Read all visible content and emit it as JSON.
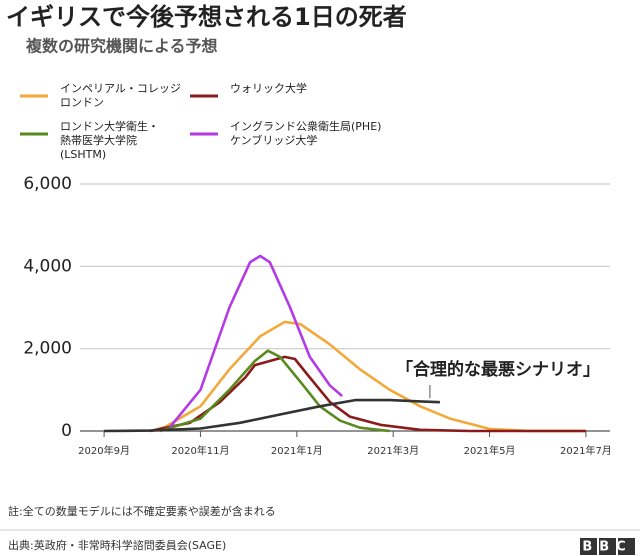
{
  "chart_data": {
    "type": "line",
    "title": "イギリスで今後予想される1日の死者",
    "subtitle": "複数の研究機関による予想",
    "xlim": [
      -0.5,
      10.5
    ],
    "xticks": [
      {
        "value": 0,
        "label": "2020年9月"
      },
      {
        "value": 2,
        "label": "2020年11月"
      },
      {
        "value": 4,
        "label": "2021年1月"
      },
      {
        "value": 6,
        "label": "2021年3月"
      },
      {
        "value": 8,
        "label": "2021年5月"
      },
      {
        "value": 10,
        "label": "2021年7月"
      }
    ],
    "ylim": [
      0,
      6000
    ],
    "yticks": [
      0,
      {
        "value": 2000,
        "label": "2,000"
      },
      {
        "value": 4000,
        "label": "4,000"
      },
      {
        "value": 6000,
        "label": "6,000"
      }
    ],
    "grid": true,
    "series": [
      {
        "name": "インペリアル・コレッジ\nロンドン",
        "color": "#f2a93b",
        "x": [
          1.0,
          1.27,
          2.0,
          2.6,
          3.24,
          3.75,
          4.07,
          4.69,
          5.31,
          5.93,
          6.56,
          7.18,
          8.0,
          8.84,
          10
        ],
        "values": [
          0,
          100,
          600,
          1500,
          2300,
          2650,
          2600,
          2100,
          1500,
          1000,
          600,
          300,
          50,
          0,
          0
        ]
      },
      {
        "name": "ウォリック大学",
        "color": "#8b1a1a",
        "x": [
          0.95,
          1.78,
          2.4,
          2.93,
          3.13,
          3.44,
          3.75,
          3.96,
          4.27,
          4.69,
          5.1,
          5.73,
          6.56,
          7.59,
          10
        ],
        "values": [
          0,
          200,
          700,
          1300,
          1600,
          1700,
          1800,
          1750,
          1300,
          700,
          350,
          150,
          30,
          0,
          0
        ]
      },
      {
        "name": "ロンドン大学衛生・\n熱帯医学大学院\n(LSHTM)",
        "color": "#5a8a1e",
        "x": [
          1.16,
          2.0,
          2.6,
          3.13,
          3.4,
          3.65,
          4.07,
          4.48,
          4.9,
          5.31,
          5.93
        ],
        "values": [
          0,
          300,
          1000,
          1700,
          1950,
          1800,
          1200,
          600,
          250,
          80,
          0
        ]
      },
      {
        "name": "イングランド公衆衛生局(PHE)\nケンブリッジ大学",
        "color": "#b43ae6",
        "x": [
          1.37,
          2.0,
          2.6,
          3.03,
          3.24,
          3.44,
          3.86,
          4.27,
          4.69,
          4.94
        ],
        "values": [
          100,
          1000,
          3000,
          4100,
          4250,
          4100,
          3000,
          1800,
          1100,
          850
        ]
      },
      {
        "name": "「合理的な最悪シナリオ」",
        "color": "#333333",
        "x": [
          0,
          0.95,
          2.0,
          2.82,
          3.65,
          4.48,
          5.21,
          5.93,
          6.56,
          6.97
        ],
        "values": [
          0,
          10,
          60,
          200,
          400,
          600,
          750,
          750,
          720,
          700
        ]
      }
    ],
    "note": "註:全ての数量モデルには不確定要素や誤差が含まれる",
    "source": "出典:英政府・非常時科学諮問委員会(SAGE)",
    "logo": "BBC"
  }
}
